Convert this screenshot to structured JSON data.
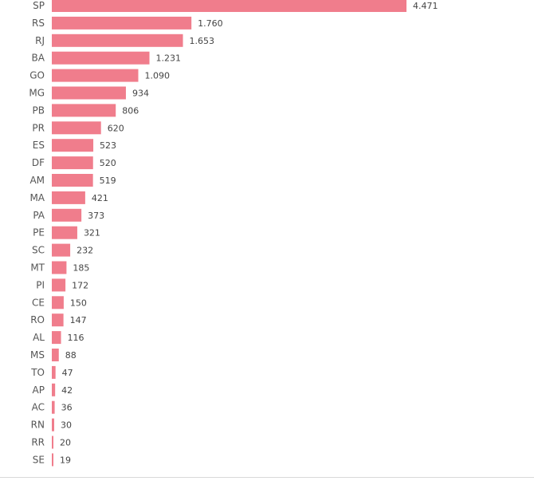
{
  "chart_data": {
    "type": "bar",
    "orientation": "horizontal",
    "title": "",
    "xlabel": "",
    "ylabel": "",
    "grid": false,
    "legend": "none",
    "bar_color": "#f07d8c",
    "categories": [
      "SP",
      "RS",
      "RJ",
      "BA",
      "GO",
      "MG",
      "PB",
      "PR",
      "ES",
      "DF",
      "AM",
      "MA",
      "PA",
      "PE",
      "SC",
      "MT",
      "PI",
      "CE",
      "RO",
      "AL",
      "MS",
      "TO",
      "AP",
      "AC",
      "RN",
      "RR",
      "SE"
    ],
    "values": [
      4471,
      1760,
      1653,
      1231,
      1090,
      934,
      806,
      620,
      523,
      520,
      519,
      421,
      373,
      321,
      232,
      185,
      172,
      150,
      147,
      116,
      88,
      47,
      42,
      36,
      30,
      20,
      19
    ],
    "value_labels": [
      "4.471",
      "1.760",
      "1.653",
      "1.231",
      "1.090",
      "934",
      "806",
      "620",
      "523",
      "520",
      "519",
      "421",
      "373",
      "321",
      "232",
      "185",
      "172",
      "150",
      "147",
      "116",
      "88",
      "47",
      "42",
      "36",
      "30",
      "20",
      "19"
    ],
    "xlim": [
      0,
      4471
    ]
  }
}
